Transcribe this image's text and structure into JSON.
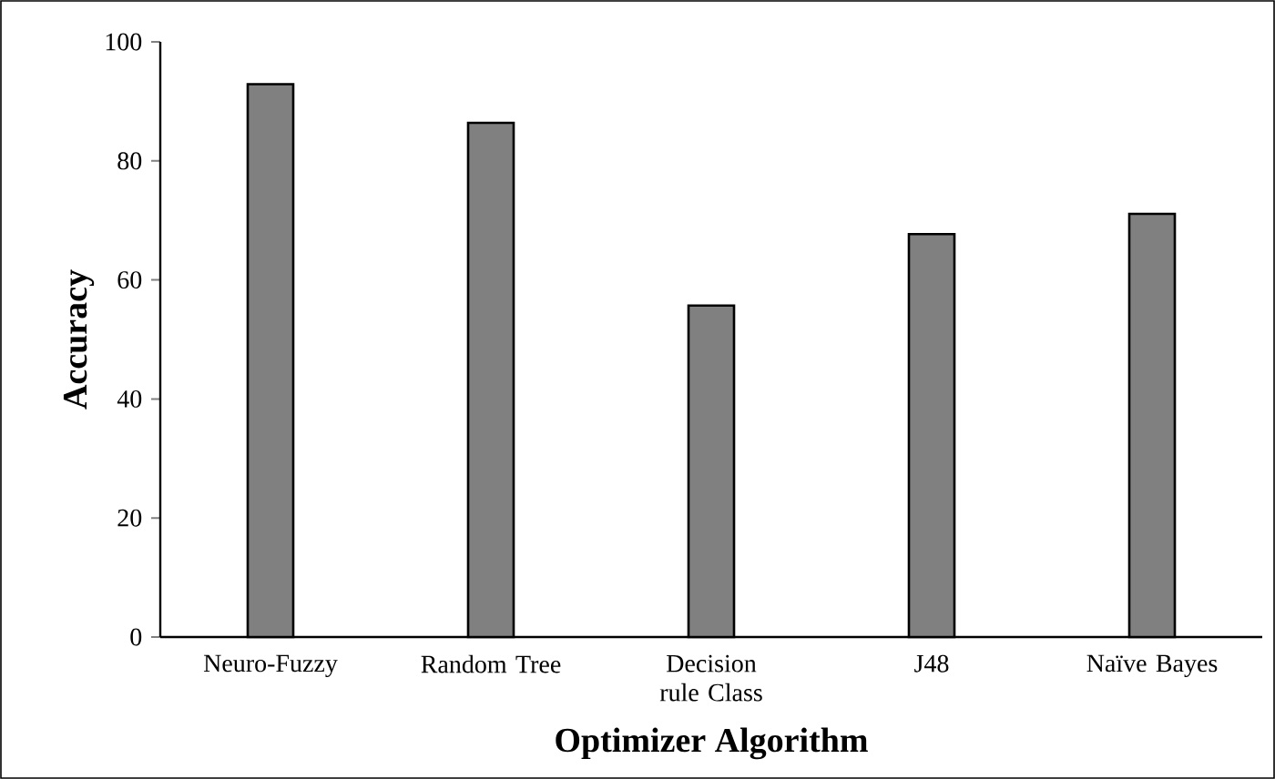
{
  "chart_data": {
    "type": "bar",
    "xlabel": "Optimizer Algorithm",
    "ylabel": "Accuracy",
    "categories": [
      "Neuro-Fuzzy",
      "Random Tree",
      "Decision rule Class",
      "J48",
      "Naïve Bayes"
    ],
    "values": [
      92.9,
      86.4,
      55.7,
      67.7,
      71.1
    ],
    "color": "#808080",
    "ylim": [
      0,
      100
    ],
    "yticks": [
      0,
      20,
      40,
      60,
      80,
      100
    ]
  }
}
